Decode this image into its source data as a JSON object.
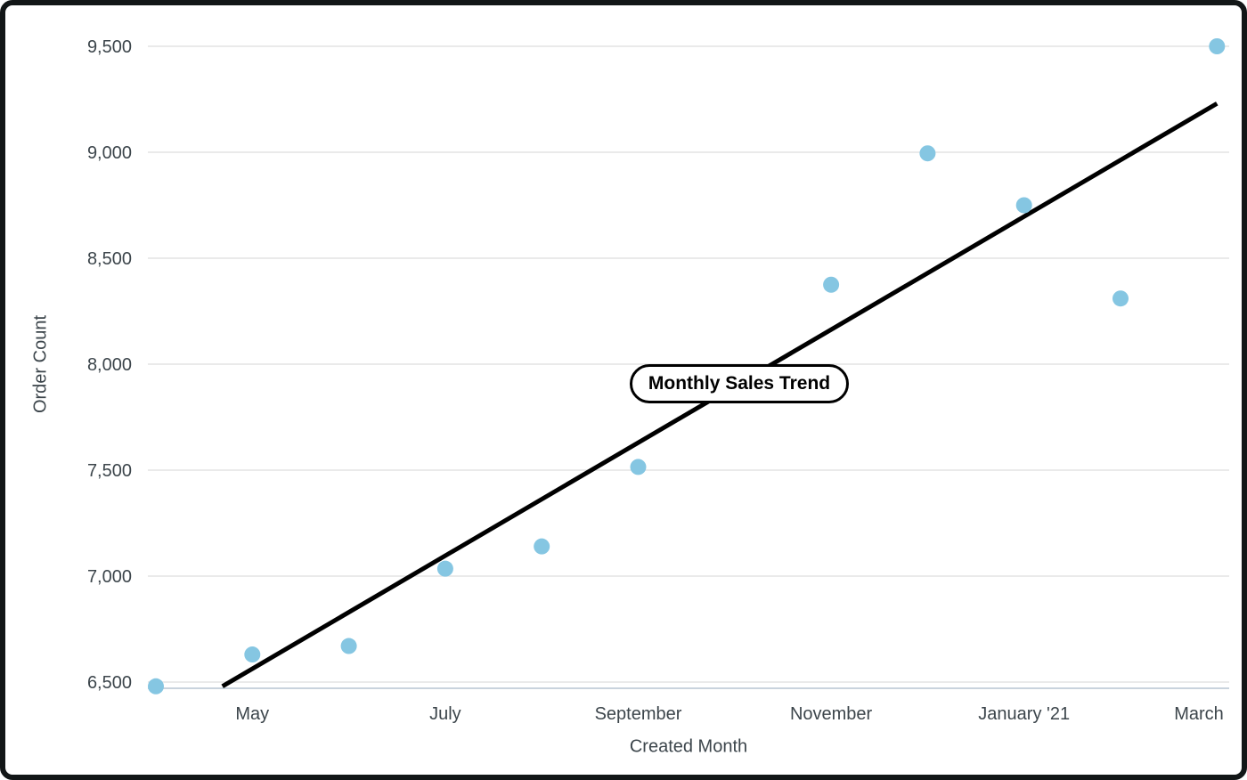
{
  "window": {
    "background_color": "#ffffff",
    "frame_border_color": "#121617"
  },
  "chart_data": {
    "type": "scatter",
    "title": "Monthly Sales Trend",
    "xlabel": "Created Month",
    "ylabel": "Order Count",
    "grid": "horizontal",
    "legend_position": "none",
    "ylim": [
      6470,
      9520
    ],
    "y_ticks": [
      {
        "label": "6,500",
        "value": 6500
      },
      {
        "label": "7,000",
        "value": 7000
      },
      {
        "label": "7,500",
        "value": 7500
      },
      {
        "label": "8,000",
        "value": 8000
      },
      {
        "label": "8,500",
        "value": 8500
      },
      {
        "label": "9,000",
        "value": 9000
      },
      {
        "label": "9,500",
        "value": 9500
      }
    ],
    "x_ticks": [
      {
        "label": "May",
        "month_index": 1
      },
      {
        "label": "July",
        "month_index": 3
      },
      {
        "label": "September",
        "month_index": 5
      },
      {
        "label": "November",
        "month_index": 7
      },
      {
        "label": "January '21",
        "month_index": 9
      },
      {
        "label": "March",
        "month_index": 11
      }
    ],
    "points": [
      {
        "month": "April",
        "month_index": 0,
        "value": 6480
      },
      {
        "month": "May",
        "month_index": 1,
        "value": 6630
      },
      {
        "month": "June",
        "month_index": 2,
        "value": 6670
      },
      {
        "month": "July",
        "month_index": 3,
        "value": 7035
      },
      {
        "month": "August",
        "month_index": 4,
        "value": 7140
      },
      {
        "month": "September",
        "month_index": 5,
        "value": 7515
      },
      {
        "month": "November",
        "month_index": 7,
        "value": 8375
      },
      {
        "month": "December",
        "month_index": 8,
        "value": 8995
      },
      {
        "month": "January '21",
        "month_index": 9,
        "value": 8750
      },
      {
        "month": "February",
        "month_index": 10,
        "value": 8310
      },
      {
        "month": "March",
        "month_index": 11,
        "value": 9500
      }
    ],
    "trend_line": {
      "start": {
        "month_pos": 0.69,
        "value": 6480
      },
      "end": {
        "month_pos": 11.0,
        "value": 9230
      }
    },
    "colors": {
      "point_fill": "#85c6e2",
      "trend_line": "#000000",
      "label_text": "#3c454b",
      "gridline": "#e4e4e4",
      "axis_line": "#c9d3dd"
    }
  }
}
